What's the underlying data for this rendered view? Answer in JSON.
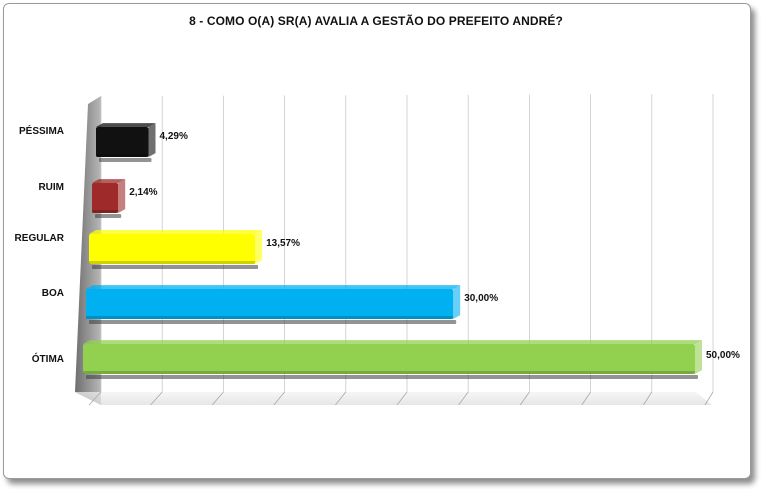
{
  "chart_data": {
    "type": "bar",
    "orientation": "horizontal",
    "title": "8 - COMO O(A) SR(A) AVALIA A GESTÃO DO PREFEITO ANDRÉ?",
    "categories": [
      "PÉSSIMA",
      "RUIM",
      "REGULAR",
      "BOA",
      "ÓTIMA"
    ],
    "values": [
      4.29,
      2.14,
      13.57,
      30.0,
      50.0
    ],
    "value_labels": [
      "4,29%",
      "2,14%",
      "13,57%",
      "30,00%",
      "50,00%"
    ],
    "colors": [
      "#111111",
      "#9e2a2a",
      "#ffff00",
      "#00b0f0",
      "#92d050"
    ],
    "xlim": [
      0,
      50
    ],
    "grid": true,
    "legend": "none",
    "style": "3d"
  }
}
